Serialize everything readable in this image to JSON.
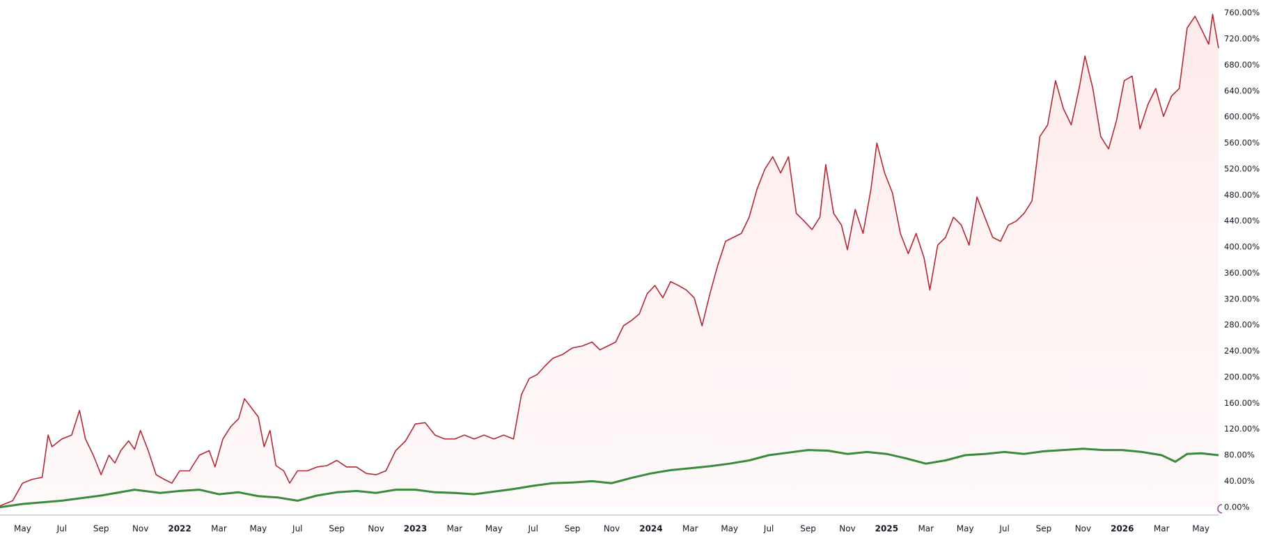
{
  "chart_data": {
    "type": "line",
    "xlim": [
      2.85,
      64.9
    ],
    "ylim": [
      -12,
      780
    ],
    "xticks": [
      {
        "value": 4,
        "label": "May"
      },
      {
        "value": 6,
        "label": "Jul"
      },
      {
        "value": 8,
        "label": "Sep"
      },
      {
        "value": 10,
        "label": "Nov"
      },
      {
        "value": 12,
        "label": "2022"
      },
      {
        "value": 14,
        "label": "Mar"
      },
      {
        "value": 16,
        "label": "May"
      },
      {
        "value": 18,
        "label": "Jul"
      },
      {
        "value": 20,
        "label": "Sep"
      },
      {
        "value": 22,
        "label": "Nov"
      },
      {
        "value": 24,
        "label": "2023"
      },
      {
        "value": 26,
        "label": "Mar"
      },
      {
        "value": 28,
        "label": "May"
      },
      {
        "value": 30,
        "label": "Jul"
      },
      {
        "value": 32,
        "label": "Sep"
      },
      {
        "value": 34,
        "label": "Nov"
      },
      {
        "value": 36,
        "label": "2024"
      },
      {
        "value": 38,
        "label": "Mar"
      },
      {
        "value": 40,
        "label": "May"
      },
      {
        "value": 42,
        "label": "Jul"
      },
      {
        "value": 44,
        "label": "Sep"
      },
      {
        "value": 46,
        "label": "Nov"
      },
      {
        "value": 48,
        "label": "2025"
      },
      {
        "value": 50,
        "label": "Mar"
      },
      {
        "value": 52,
        "label": "May"
      },
      {
        "value": 54,
        "label": "Jul"
      },
      {
        "value": 56,
        "label": "Sep"
      },
      {
        "value": 58,
        "label": "Nov"
      },
      {
        "value": 60,
        "label": "2026"
      },
      {
        "value": 62,
        "label": "Mar"
      },
      {
        "value": 64,
        "label": "May"
      }
    ],
    "yticks": [
      {
        "value": 0,
        "label": "0.00%"
      },
      {
        "value": 40,
        "label": "40.00%"
      },
      {
        "value": 80,
        "label": "80.00%"
      },
      {
        "value": 120,
        "label": "120.00%"
      },
      {
        "value": 160,
        "label": "160.00%"
      },
      {
        "value": 200,
        "label": "200.00%"
      },
      {
        "value": 240,
        "label": "240.00%"
      },
      {
        "value": 280,
        "label": "280.00%"
      },
      {
        "value": 320,
        "label": "320.00%"
      },
      {
        "value": 360,
        "label": "360.00%"
      },
      {
        "value": 400,
        "label": "400.00%"
      },
      {
        "value": 440,
        "label": "440.00%"
      },
      {
        "value": 480,
        "label": "480.00%"
      },
      {
        "value": 520,
        "label": "520.00%"
      },
      {
        "value": 560,
        "label": "560.00%"
      },
      {
        "value": 600,
        "label": "600.00%"
      },
      {
        "value": 640,
        "label": "640.00%"
      },
      {
        "value": 680,
        "label": "680.00%"
      },
      {
        "value": 720,
        "label": "720.00%"
      },
      {
        "value": 760,
        "label": "760.00%"
      }
    ],
    "grid": false,
    "series": [
      {
        "color": "#b22833",
        "fill": "#fdeeee",
        "x": [
          2.85,
          3.5,
          4,
          4.5,
          5,
          5.3,
          5.5,
          6,
          6.5,
          6.9,
          7.2,
          7.6,
          8,
          8.4,
          8.7,
          9,
          9.4,
          9.7,
          10,
          10.4,
          10.8,
          11.2,
          11.6,
          12,
          12.5,
          13,
          13.5,
          13.8,
          14.2,
          14.6,
          15,
          15.3,
          15.6,
          16,
          16.3,
          16.6,
          16.9,
          17.3,
          17.6,
          18,
          18.5,
          19,
          19.5,
          20,
          20.5,
          21,
          21.5,
          22,
          22.5,
          23,
          23.5,
          24,
          24.5,
          25,
          25.5,
          26,
          26.5,
          27,
          27.5,
          28,
          28.5,
          29,
          29.4,
          29.8,
          30.2,
          30.6,
          31,
          31.5,
          32,
          32.5,
          33,
          33.4,
          33.8,
          34.2,
          34.6,
          35,
          35.4,
          35.8,
          36.2,
          36.6,
          37,
          37.4,
          37.8,
          38.2,
          38.6,
          39,
          39.4,
          39.8,
          40.2,
          40.6,
          41,
          41.4,
          41.8,
          42.2,
          42.6,
          43,
          43.4,
          43.8,
          44.2,
          44.6,
          44.9,
          45.3,
          45.7,
          46,
          46.4,
          46.8,
          47.2,
          47.5,
          47.9,
          48.3,
          48.7,
          49.1,
          49.5,
          49.9,
          50.2,
          50.6,
          51,
          51.4,
          51.8,
          52.2,
          52.6,
          53,
          53.4,
          53.8,
          54.2,
          54.6,
          55,
          55.4,
          55.8,
          56.2,
          56.6,
          57,
          57.4,
          57.8,
          58.1,
          58.5,
          58.9,
          59.3,
          59.7,
          60.1,
          60.5,
          60.9,
          61.3,
          61.7,
          62.1,
          62.5,
          62.9,
          63.3,
          63.7,
          64.1,
          64.4,
          64.6,
          64.9
        ],
        "values": [
          2,
          10,
          37,
          43,
          46,
          111,
          93,
          105,
          111,
          149,
          105,
          80,
          50,
          80,
          68,
          87,
          102,
          89,
          118,
          87,
          50,
          43,
          37,
          56,
          56,
          80,
          87,
          62,
          105,
          124,
          136,
          167,
          155,
          139,
          93,
          118,
          64,
          56,
          37,
          56,
          56,
          62,
          64,
          72,
          62,
          62,
          52,
          50,
          56,
          87,
          102,
          128,
          130,
          111,
          105,
          105,
          111,
          105,
          111,
          105,
          111,
          105,
          173,
          198,
          204,
          217,
          229,
          235,
          245,
          248,
          254,
          242,
          248,
          254,
          279,
          287,
          297,
          328,
          341,
          322,
          347,
          341,
          334,
          322,
          279,
          328,
          372,
          409,
          415,
          421,
          446,
          489,
          520,
          539,
          514,
          539,
          452,
          440,
          427,
          446,
          527,
          452,
          434,
          396,
          458,
          421,
          489,
          560,
          514,
          483,
          421,
          390,
          421,
          384,
          334,
          403,
          415,
          446,
          434,
          403,
          477,
          446,
          415,
          409,
          434,
          440,
          452,
          471,
          570,
          588,
          656,
          613,
          588,
          644,
          694,
          644,
          570,
          551,
          594,
          656,
          663,
          582,
          619,
          644,
          601,
          632,
          644,
          737,
          755,
          731,
          712,
          758,
          706
        ]
      },
      {
        "color": "#3a8a3d",
        "x": [
          2.85,
          4,
          6,
          8,
          9.7,
          11,
          12,
          13,
          14,
          15,
          16,
          17,
          18,
          19,
          20,
          21,
          22,
          23,
          24,
          25,
          26,
          27,
          28,
          29,
          30,
          31,
          32,
          33,
          34,
          35,
          36,
          37,
          38,
          39,
          40,
          41,
          42,
          43,
          44,
          45,
          46,
          47,
          48,
          49,
          50,
          51,
          52,
          53,
          54,
          55,
          56,
          57,
          58,
          59,
          60,
          61,
          62,
          62.7,
          63.3,
          64,
          64.9
        ],
        "values": [
          0,
          5,
          10,
          18,
          27,
          22,
          25,
          27,
          20,
          23,
          17,
          15,
          10,
          18,
          23,
          25,
          22,
          27,
          27,
          23,
          22,
          20,
          24,
          28,
          33,
          37,
          38,
          40,
          37,
          45,
          52,
          57,
          60,
          63,
          67,
          72,
          80,
          84,
          88,
          87,
          82,
          85,
          82,
          75,
          67,
          72,
          80,
          82,
          85,
          82,
          86,
          88,
          90,
          88,
          88,
          85,
          80,
          70,
          82,
          83,
          80
        ]
      }
    ]
  }
}
